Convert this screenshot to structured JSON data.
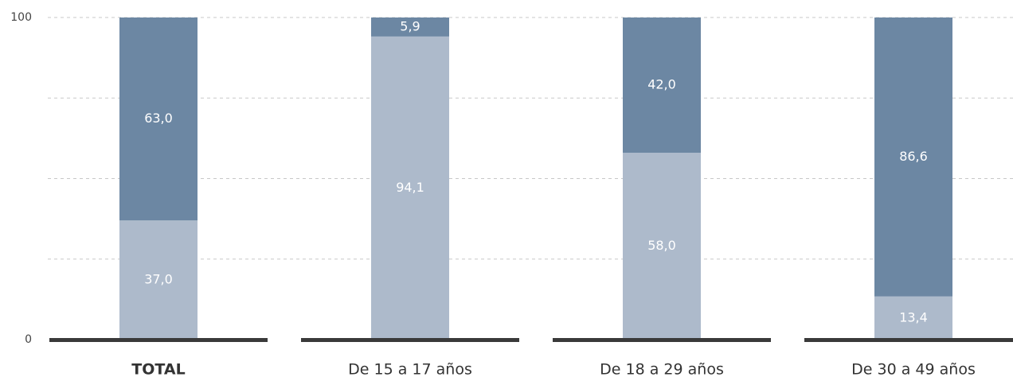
{
  "chart_data": {
    "type": "stacked_bar",
    "categories": [
      "TOTAL",
      "De 15 a 17 años",
      "De 18 a 29 años",
      "De 30 a 49 años"
    ],
    "series": [
      {
        "color": "#adbacb",
        "values": [
          37.0,
          94.1,
          58.0,
          13.4
        ],
        "value_labels": [
          "37,0",
          "94,1",
          "58,0",
          "13,4"
        ]
      },
      {
        "color": "#6c87a3",
        "values": [
          63.0,
          5.9,
          42.0,
          86.6
        ],
        "value_labels": [
          "63,0",
          "5,9",
          "42,0",
          "86,6"
        ]
      }
    ],
    "ylim": [
      0,
      100
    ],
    "yticks": [
      0,
      100
    ],
    "gridlines": [
      25,
      50,
      75,
      100
    ]
  }
}
